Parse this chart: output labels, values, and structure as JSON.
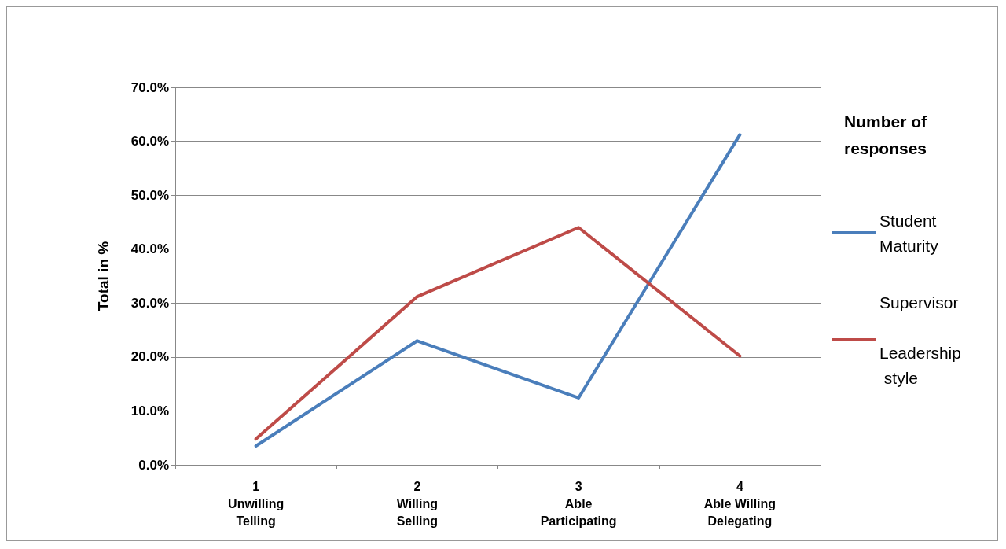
{
  "chart_data": {
    "type": "line",
    "ylabel": "Total in %",
    "legend_title": "Number of responses",
    "categories": [
      "1\nUnwilling\nTelling",
      "2\nWilling\nSelling",
      "3\nAble\nParticipating",
      "4\nAble Willing\nDelegating"
    ],
    "series": [
      {
        "name": "Student Maturity",
        "color": "#4a7ebb",
        "values": [
          3.5,
          23.0,
          12.4,
          61.2
        ]
      },
      {
        "name": "Supervisor Leadership style",
        "color": "#be4b48",
        "values": [
          4.8,
          31.2,
          44.0,
          20.2
        ]
      }
    ],
    "ylim": [
      0,
      70
    ],
    "yticks": [
      {
        "value": 0,
        "label": "0.0%"
      },
      {
        "value": 10,
        "label": "10.0%"
      },
      {
        "value": 20,
        "label": "20.0%"
      },
      {
        "value": 30,
        "label": "30.0%"
      },
      {
        "value": 40,
        "label": "40.0%"
      },
      {
        "value": 50,
        "label": "50.0%"
      },
      {
        "value": 60,
        "label": "60.0%"
      },
      {
        "value": 70,
        "label": "70.0%"
      }
    ],
    "grid": "y",
    "legend": "right",
    "marker": "none",
    "line_style": "solid"
  }
}
